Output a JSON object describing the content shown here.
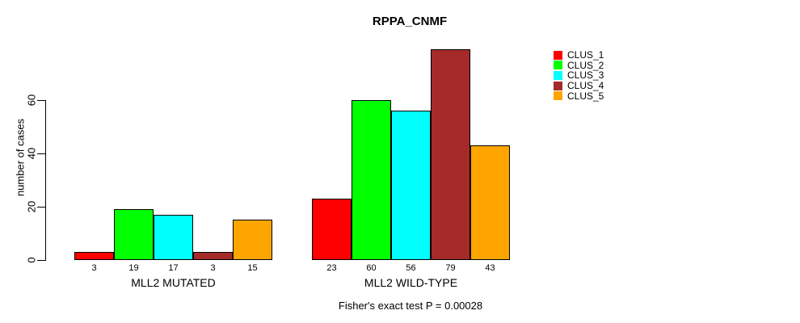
{
  "chart_data": {
    "type": "bar",
    "title": "RPPA_CNMF",
    "ylabel": "number of cases",
    "subtitle": "Fisher's exact test P = 0.00028",
    "categories": [
      "MLL2 MUTATED",
      "MLL2 WILD-TYPE"
    ],
    "series": [
      {
        "name": "CLUS_1",
        "color": "#FF0000",
        "values": [
          3,
          23
        ]
      },
      {
        "name": "CLUS_2",
        "color": "#00FF00",
        "values": [
          19,
          60
        ]
      },
      {
        "name": "CLUS_3",
        "color": "#00FFFF",
        "values": [
          17,
          56
        ]
      },
      {
        "name": "CLUS_4",
        "color": "#A52A2A",
        "values": [
          3,
          79
        ]
      },
      {
        "name": "CLUS_5",
        "color": "#FFA500",
        "values": [
          15,
          43
        ]
      }
    ],
    "bar_value_labels": [
      [
        3,
        19,
        17,
        3,
        15
      ],
      [
        23,
        60,
        56,
        79,
        43
      ]
    ],
    "yticks": [
      0,
      20,
      40,
      60
    ],
    "ylim": [
      0,
      60
    ],
    "grid": false,
    "legend_position": "top-right",
    "text_color": "#000000",
    "bar_border_color": "#000000"
  }
}
